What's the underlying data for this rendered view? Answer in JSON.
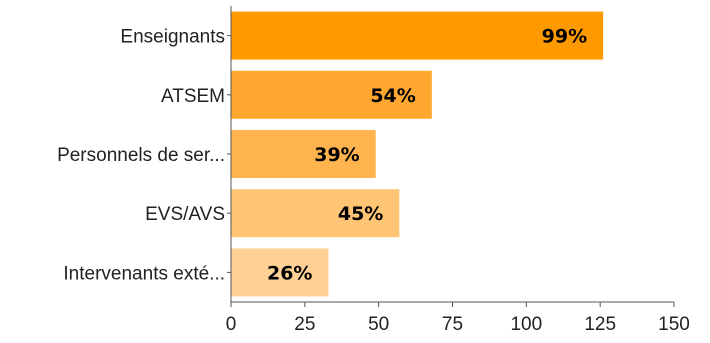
{
  "chart_data": {
    "type": "bar",
    "orientation": "horizontal",
    "title": "",
    "xlabel": "",
    "ylabel": "",
    "categories": [
      "Enseignants",
      "ATSEM",
      "Personnels de ser...",
      "EVS/AVS",
      "Intervenants exté..."
    ],
    "values": [
      126,
      68,
      49,
      57,
      33
    ],
    "data_labels": [
      "99%",
      "54%",
      "39%",
      "45%",
      "26%"
    ],
    "bar_colors": [
      "#ff9900",
      "#ffa731",
      "#ffb44f",
      "#ffc474",
      "#ffd195"
    ],
    "xlim": [
      0,
      150
    ],
    "xticks": [
      0,
      25,
      50,
      75,
      100,
      125,
      150
    ],
    "grid": false,
    "legend": "none"
  },
  "colors": {
    "axis": "#555555",
    "text": "#222222",
    "background": "#ffffff"
  }
}
